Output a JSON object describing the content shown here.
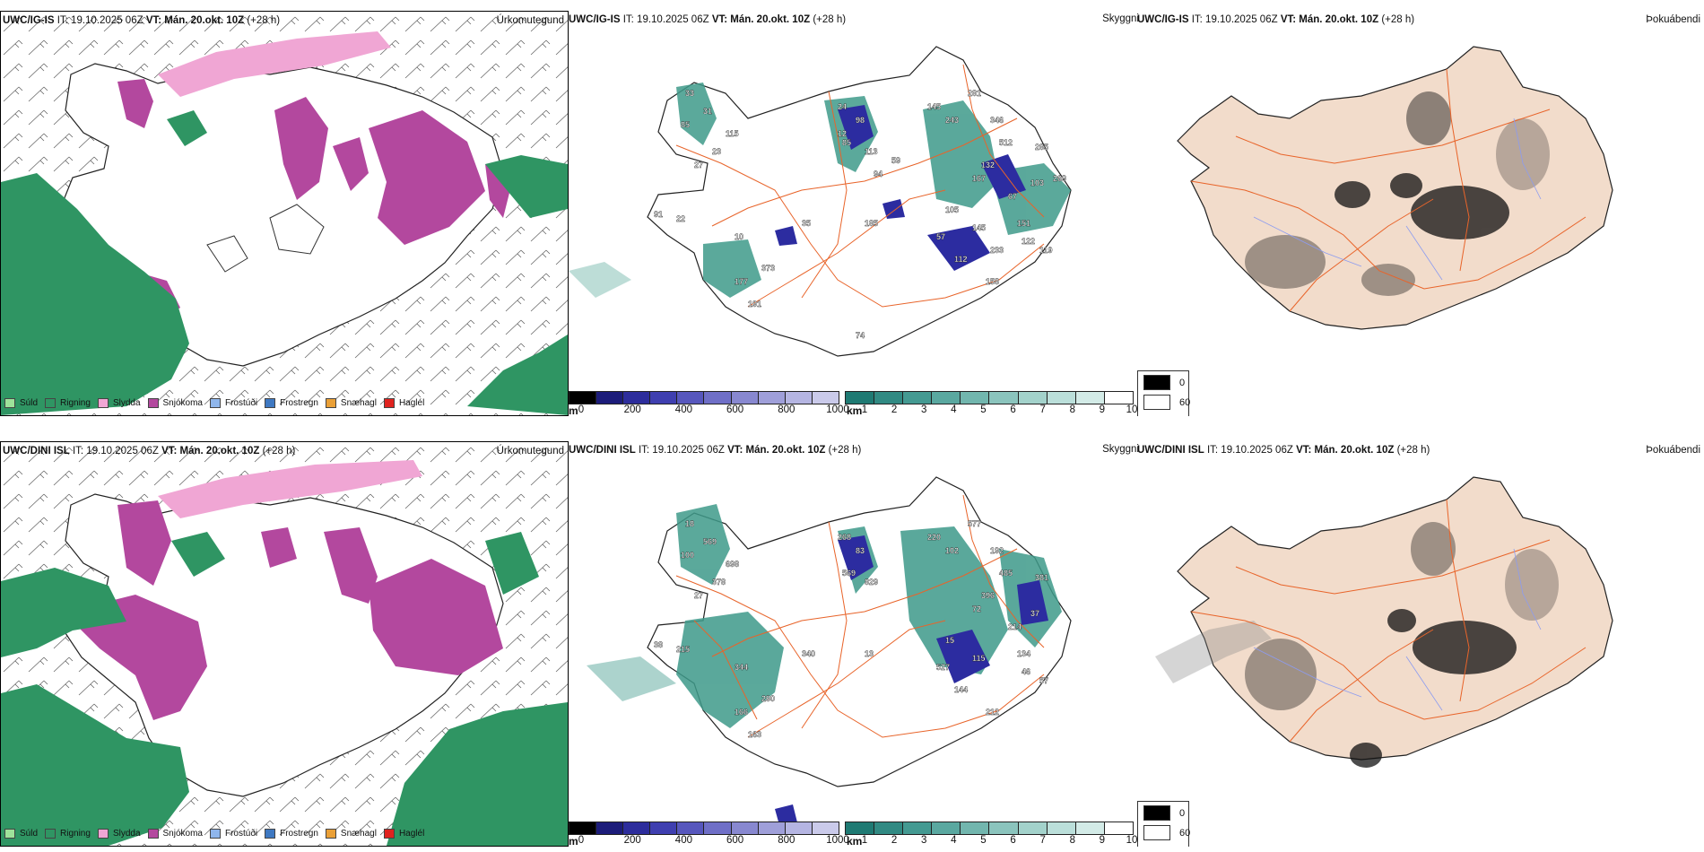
{
  "rows": [
    {
      "model": "UWC/IG-IS",
      "it_label": "IT:",
      "it_value": "19.10.2025 06Z",
      "vt_label": "VT:",
      "vt_value": "Mán. 20.okt. 10Z",
      "lead": "(+28 h)",
      "panel1_title": "Úrkomutegund",
      "panel2_title": "Skyggni",
      "panel3_title": "Þokuábendi",
      "skyggni_labels": [
        "33",
        "31",
        "85",
        "23",
        "27",
        "115",
        "24",
        "98",
        "85",
        "113",
        "91",
        "22",
        "10",
        "35",
        "185",
        "145",
        "243",
        "281",
        "57",
        "145",
        "112",
        "158",
        "191",
        "177",
        "373",
        "346",
        "512",
        "285",
        "132",
        "167",
        "67",
        "105",
        "151",
        "122",
        "119",
        "103",
        "269",
        "233",
        "74",
        "12",
        "94",
        "59"
      ]
    },
    {
      "model": "UWC/DINI ISL",
      "it_label": "IT:",
      "it_value": "19.10.2025 06Z",
      "vt_label": "VT:",
      "vt_value": "Mán. 20.okt. 10Z",
      "lead": "(+28 h)",
      "panel1_title": "Úrkomutegund",
      "panel2_title": "Skyggni",
      "panel3_title": "Þokuábendi",
      "skyggni_labels": [
        "18",
        "569",
        "100",
        "378",
        "27",
        "698",
        "268",
        "83",
        "569",
        "829",
        "38",
        "215",
        "344",
        "340",
        "13",
        "220",
        "102",
        "577",
        "527",
        "115",
        "144",
        "212",
        "163",
        "166",
        "290",
        "192",
        "485",
        "381",
        "396",
        "72",
        "214",
        "15",
        "134",
        "46",
        "57",
        "37"
      ]
    }
  ],
  "precip_legend": [
    {
      "label": "Súld",
      "color": "#9ee29a"
    },
    {
      "label": "Rigning",
      "color": "#2f9563"
    },
    {
      "label": "Slydda",
      "color": "#f0a6d4"
    },
    {
      "label": "Snjókoma",
      "color": "#b3489e"
    },
    {
      "label": "Frostúði",
      "color": "#8fb6ec"
    },
    {
      "label": "Frostregn",
      "color": "#3f79c2"
    },
    {
      "label": "Snæhagl",
      "color": "#eaa037"
    },
    {
      "label": "Haglél",
      "color": "#e0231f"
    }
  ],
  "cloud_base_scale": {
    "unit": "m",
    "ticks": [
      "0",
      "200",
      "400",
      "600",
      "800",
      "1000"
    ],
    "colors": [
      "#000000",
      "#1c1c7a",
      "#2d2d9c",
      "#3f3fb0",
      "#5757bd",
      "#6f6fc7",
      "#8888d0",
      "#9f9fd9",
      "#b5b5e2",
      "#cacaea"
    ]
  },
  "visibility_scale": {
    "unit": "km",
    "ticks": [
      "1",
      "2",
      "3",
      "4",
      "5",
      "6",
      "7",
      "8",
      "9",
      "10"
    ],
    "colors": [
      "#1f7a73",
      "#318a83",
      "#449a92",
      "#5aa8a0",
      "#72b6ae",
      "#8bc4bd",
      "#a3d2cb",
      "#bbdfda",
      "#d3ebe7",
      "#ffffff"
    ]
  },
  "fog_scale": {
    "items": [
      {
        "label": "0",
        "color": "#000000"
      },
      {
        "label": "60",
        "color": "#ffffff"
      }
    ]
  },
  "colors": {
    "rain": "#2f9563",
    "snow": "#b3489e",
    "sleet": "#f0a6d4",
    "land": "#f2dccb",
    "roads": "#e8642a",
    "rivers": "#8c9cf0",
    "visteal": "#3e9a8a",
    "cloudblue": "#2c2ca0"
  }
}
